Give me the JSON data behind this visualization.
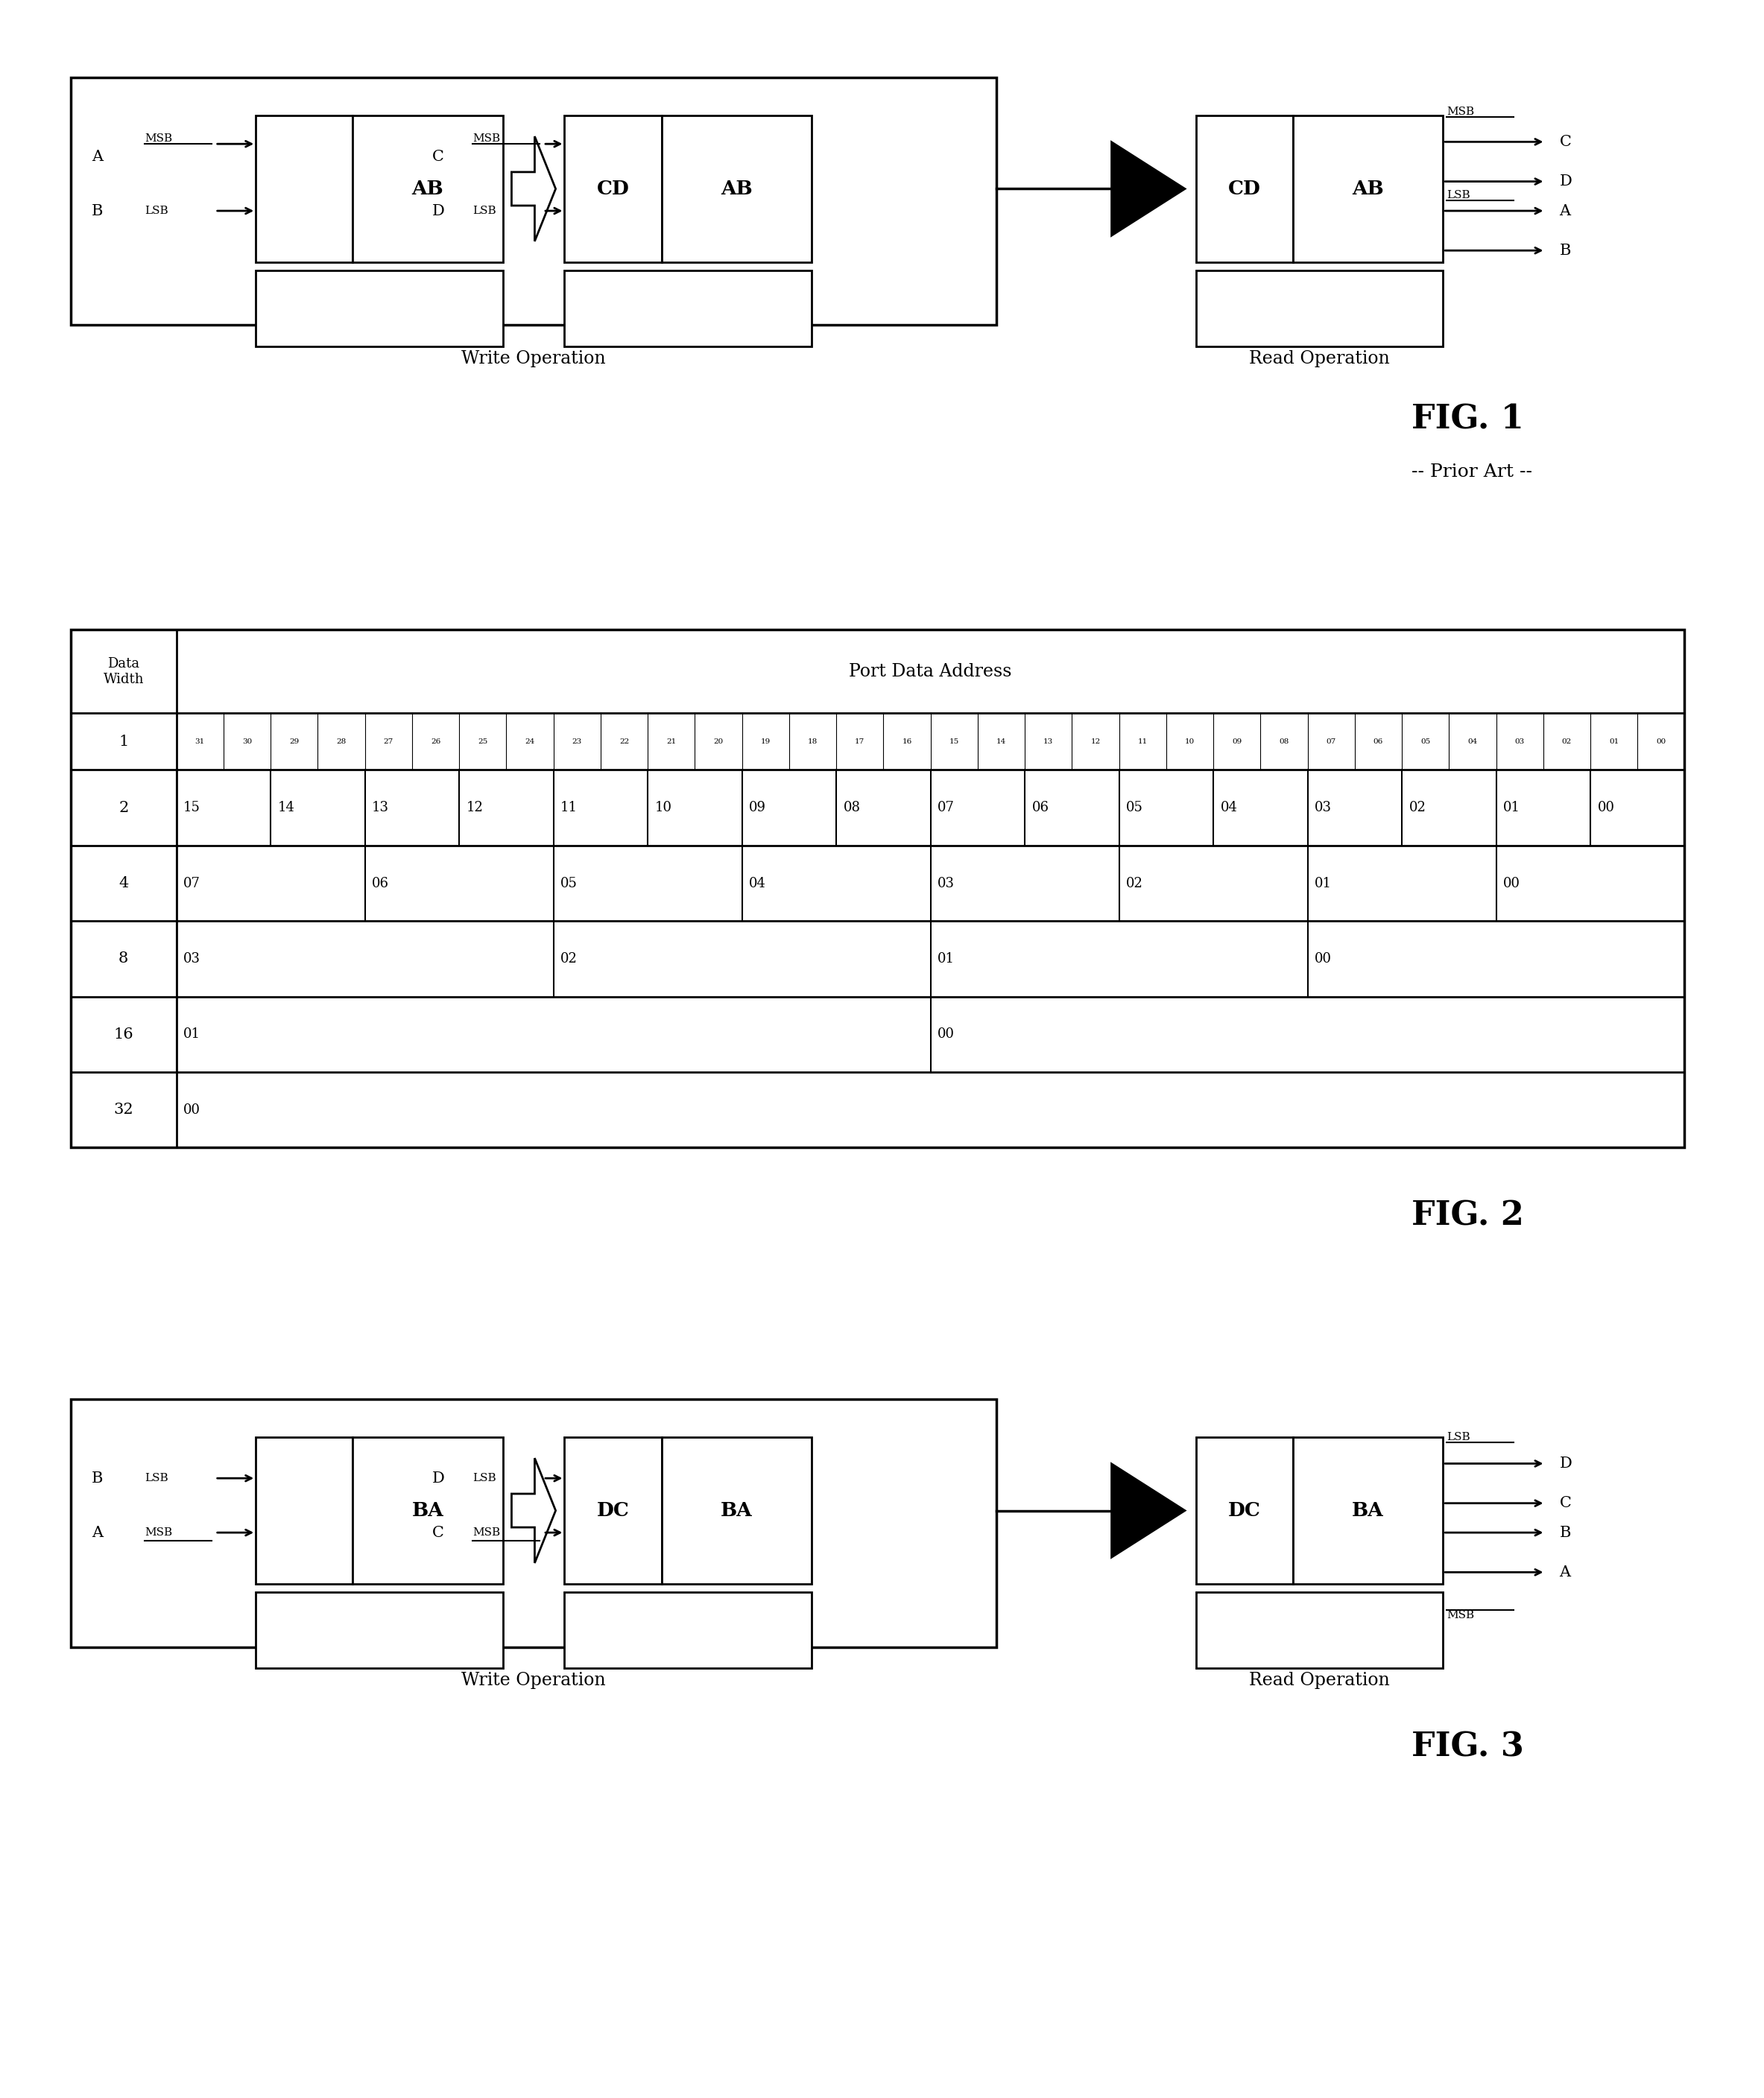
{
  "bg_color": "#ffffff",
  "fig_width": 23.67,
  "fig_height": 28.16,
  "fig1_title": "FIG. 1",
  "fig1_subtitle": "-- Prior Art --",
  "fig2_title": "FIG. 2",
  "fig3_title": "FIG. 3",
  "write_label": "Write Operation",
  "read_label": "Read Operation"
}
